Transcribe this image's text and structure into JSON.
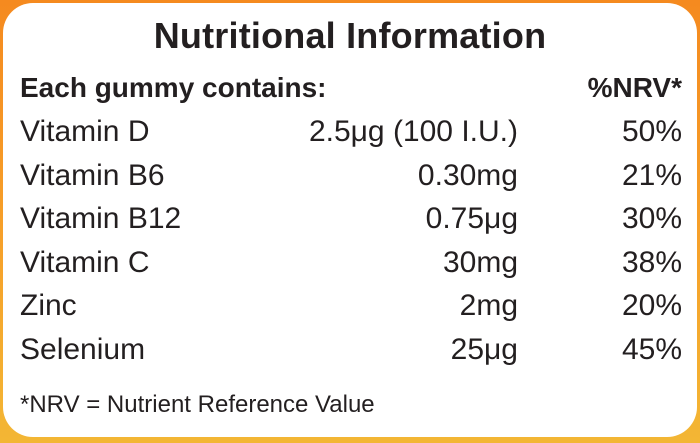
{
  "title": "Nutritional Information",
  "header": {
    "left": "Each gummy contains:",
    "right": "%NRV*"
  },
  "rows": [
    {
      "name": "Vitamin D",
      "amount": "2.5μg (100 I.U.)",
      "nrv": "50%"
    },
    {
      "name": "Vitamin B6",
      "amount": "0.30mg",
      "nrv": "21%"
    },
    {
      "name": "Vitamin B12",
      "amount": "0.75μg",
      "nrv": "30%"
    },
    {
      "name": "Vitamin C",
      "amount": "30mg",
      "nrv": "38%"
    },
    {
      "name": "Zinc",
      "amount": "2mg",
      "nrv": "20%"
    },
    {
      "name": "Selenium",
      "amount": "25μg",
      "nrv": "45%"
    }
  ],
  "footnote": "*NRV = Nutrient Reference Value",
  "colors": {
    "text": "#231f20",
    "background_orange": "#f6a12a",
    "panel": "#ffffff"
  }
}
